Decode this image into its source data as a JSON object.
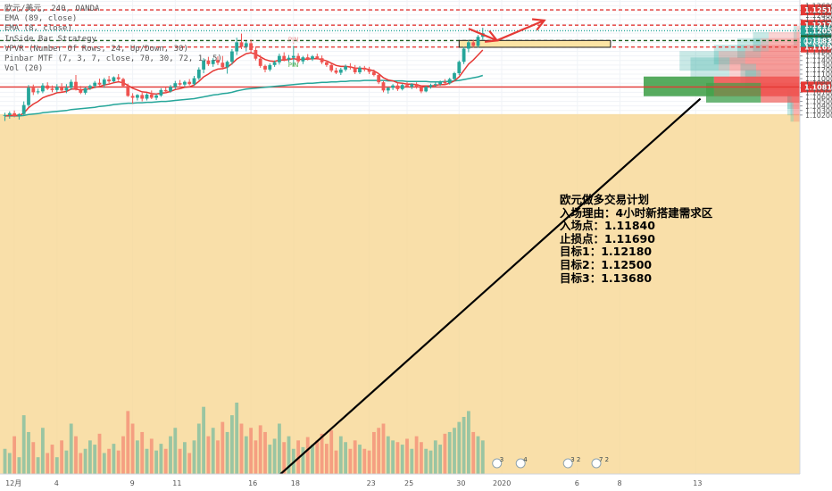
{
  "header": {
    "symbol_line": "欧元/美元, 240, OANDA",
    "indicators": [
      "EMA (89, close)",
      "EMA (8, close)",
      "InSide Bar Strategy",
      "VPVR (Number Of Rows, 24, Up/Down, 30)",
      "Pinbar MTF (7, 3, 7, close, 70, 30, 72, 1, 5)",
      "Vol (20)"
    ]
  },
  "plan": {
    "lines": [
      "欧元做多交易计划",
      "入场理由：4小时新搭建需求区",
      "入场点：1.11840",
      "止损点：1.11690",
      "目标1：1.12180",
      "目标2：1.12500",
      "目标3：1.13680"
    ]
  },
  "annotations": {
    "pin_top": "PIN",
    "pin_bottom": "PIN",
    "countdown": "02:31:26"
  },
  "colors": {
    "bull": "#26a69a",
    "bear": "#ef5350",
    "ema_fast": "#e53935",
    "ema_slow": "#26a69a",
    "level_red": "#e53935",
    "level_green": "#1b5e20",
    "zone_fill": "#fce4a4",
    "zone_border": "#1a1a1a",
    "trend": "#000000",
    "arrow": "#e53935",
    "price_badge": "#26a69a",
    "volume_band": "#f7d794"
  },
  "chart_data": {
    "type": "candlestick",
    "symbol": "欧元/美元",
    "timeframe": "240",
    "exchange": "OANDA",
    "ylim": [
      1.0193,
      1.1273
    ],
    "y_ticks": [
      1.102,
      1.103,
      1.104,
      1.105,
      1.106,
      1.107,
      1.108,
      1.109,
      1.11,
      1.111,
      1.112,
      1.113,
      1.114,
      1.115,
      1.116,
      1.117,
      1.118,
      1.119,
      1.12,
      1.121,
      1.122,
      1.123,
      1.124,
      1.125,
      1.126,
      1.127
    ],
    "y_tick_labels": [
      "1.10200",
      "1.10300",
      "1.10400",
      "1.10500",
      "1.10600",
      "1.10700",
      "1.10800",
      "1.10900",
      "1.11000",
      "1.11100",
      "1.11200",
      "1.11300",
      "1.11400",
      "1.11500",
      "1.11600",
      "1.11700",
      "1.11800",
      "1.11900",
      "1.12000",
      "1.12100",
      "1.12200",
      "1.12300",
      "1.12400",
      "1.12500",
      "1.12600",
      "1.12700"
    ],
    "x_tick_labels": [
      {
        "label": "12月",
        "bar": 2
      },
      {
        "label": "4",
        "bar": 11
      },
      {
        "label": "9",
        "bar": 27
      },
      {
        "label": "11",
        "bar": 36
      },
      {
        "label": "16",
        "bar": 52
      },
      {
        "label": "18",
        "bar": 61
      },
      {
        "label": "23",
        "bar": 77
      },
      {
        "label": "25",
        "bar": 85
      },
      {
        "label": "30",
        "bar": 96
      },
      {
        "label": "2020",
        "bar": 105
      },
      {
        "label": "6",
        "bar": 121
      },
      {
        "label": "8",
        "bar": 130
      },
      {
        "label": "13",
        "bar": 146
      }
    ],
    "levels": [
      {
        "price": 1.12512,
        "label": "1.12512",
        "color": "#e53935",
        "style": "dashed"
      },
      {
        "price": 1.12176,
        "label": "1.12176",
        "color": "#e53935",
        "style": "dashed"
      },
      {
        "price": 1.12053,
        "label": "1.12053",
        "color": "#26a69a",
        "style": "dotted"
      },
      {
        "price": 1.11838,
        "label": "1.11838",
        "color": "#1b5e20",
        "style": "dashed"
      },
      {
        "price": 1.11695,
        "label": "1.11695",
        "color": "#e53935",
        "style": "dashed"
      },
      {
        "price": 1.10817,
        "label": "1.10817",
        "color": "#e53935",
        "style": "solid"
      }
    ],
    "demand_zone": {
      "start_bar": 96,
      "end_bar": 128,
      "top": 1.1184,
      "bottom": 1.1169
    },
    "forecast_arrow": [
      {
        "bar": 98,
        "price": 1.121
      },
      {
        "bar": 104,
        "price": 1.1184
      },
      {
        "bar": 114,
        "price": 1.1228
      }
    ],
    "trendline": {
      "start": {
        "bar": 55,
        "price": 1.02
      },
      "end": {
        "bar": 147,
        "price": 1.1056
      }
    },
    "ohlc": [
      [
        1.1018,
        1.1025,
        1.1007,
        1.102
      ],
      [
        1.102,
        1.1028,
        1.1012,
        1.1024
      ],
      [
        1.1024,
        1.103,
        1.1015,
        1.1018
      ],
      [
        1.1018,
        1.1024,
        1.101,
        1.1022
      ],
      [
        1.1022,
        1.105,
        1.1018,
        1.1042
      ],
      [
        1.1042,
        1.1086,
        1.1038,
        1.108
      ],
      [
        1.108,
        1.1087,
        1.1064,
        1.107
      ],
      [
        1.107,
        1.1078,
        1.1066,
        1.1072
      ],
      [
        1.1072,
        1.109,
        1.1068,
        1.1085
      ],
      [
        1.1085,
        1.1092,
        1.1075,
        1.1078
      ],
      [
        1.1078,
        1.1085,
        1.107,
        1.1075
      ],
      [
        1.1075,
        1.1088,
        1.107,
        1.1082
      ],
      [
        1.1082,
        1.109,
        1.107,
        1.1074
      ],
      [
        1.1074,
        1.1088,
        1.1068,
        1.108
      ],
      [
        1.108,
        1.1098,
        1.1075,
        1.1093
      ],
      [
        1.1093,
        1.1108,
        1.1074,
        1.1077
      ],
      [
        1.1077,
        1.1084,
        1.1066,
        1.1069
      ],
      [
        1.1069,
        1.1081,
        1.1065,
        1.1079
      ],
      [
        1.1079,
        1.1087,
        1.1075,
        1.1084
      ],
      [
        1.1084,
        1.1095,
        1.1079,
        1.1091
      ],
      [
        1.1091,
        1.11,
        1.1085,
        1.1087
      ],
      [
        1.1087,
        1.1102,
        1.108,
        1.1098
      ],
      [
        1.1098,
        1.1106,
        1.109,
        1.1094
      ],
      [
        1.1094,
        1.1105,
        1.1092,
        1.1103
      ],
      [
        1.1103,
        1.111,
        1.1095,
        1.1099
      ],
      [
        1.1099,
        1.1102,
        1.1081,
        1.1084
      ],
      [
        1.1084,
        1.1089,
        1.106,
        1.1062
      ],
      [
        1.1062,
        1.1068,
        1.1045,
        1.1058
      ],
      [
        1.1058,
        1.1066,
        1.1052,
        1.1064
      ],
      [
        1.1064,
        1.1069,
        1.105,
        1.1056
      ],
      [
        1.1056,
        1.1068,
        1.1052,
        1.1065
      ],
      [
        1.1065,
        1.1074,
        1.1055,
        1.1058
      ],
      [
        1.1058,
        1.1066,
        1.1053,
        1.1063
      ],
      [
        1.1063,
        1.1079,
        1.106,
        1.1075
      ],
      [
        1.1075,
        1.1081,
        1.1068,
        1.1072
      ],
      [
        1.1072,
        1.1086,
        1.1069,
        1.1082
      ],
      [
        1.1082,
        1.1095,
        1.1077,
        1.109
      ],
      [
        1.109,
        1.1097,
        1.1084,
        1.1087
      ],
      [
        1.1087,
        1.1096,
        1.1082,
        1.1093
      ],
      [
        1.1093,
        1.1099,
        1.1085,
        1.1088
      ],
      [
        1.1088,
        1.1106,
        1.1084,
        1.1101
      ],
      [
        1.1101,
        1.1125,
        1.1097,
        1.112
      ],
      [
        1.112,
        1.1145,
        1.1112,
        1.114
      ],
      [
        1.114,
        1.1148,
        1.1128,
        1.1132
      ],
      [
        1.1132,
        1.1145,
        1.1126,
        1.1141
      ],
      [
        1.1141,
        1.1149,
        1.113,
        1.1135
      ],
      [
        1.1135,
        1.115,
        1.112,
        1.1125
      ],
      [
        1.1125,
        1.114,
        1.1111,
        1.1137
      ],
      [
        1.1137,
        1.1165,
        1.1131,
        1.116
      ],
      [
        1.116,
        1.119,
        1.1152,
        1.118
      ],
      [
        1.118,
        1.1199,
        1.1165,
        1.117
      ],
      [
        1.117,
        1.1183,
        1.116,
        1.1178
      ],
      [
        1.1178,
        1.1186,
        1.1158,
        1.1163
      ],
      [
        1.1163,
        1.1171,
        1.114,
        1.1144
      ],
      [
        1.1144,
        1.1152,
        1.1124,
        1.1128
      ],
      [
        1.1128,
        1.1131,
        1.1114,
        1.112
      ],
      [
        1.112,
        1.1134,
        1.1116,
        1.113
      ],
      [
        1.113,
        1.114,
        1.1126,
        1.1136
      ],
      [
        1.1136,
        1.1155,
        1.1131,
        1.115
      ],
      [
        1.115,
        1.1158,
        1.1138,
        1.1142
      ],
      [
        1.1142,
        1.1152,
        1.1136,
        1.1146
      ],
      [
        1.1146,
        1.1172,
        1.113,
        1.115
      ],
      [
        1.115,
        1.1156,
        1.1134,
        1.1138
      ],
      [
        1.1138,
        1.115,
        1.1132,
        1.1147
      ],
      [
        1.1147,
        1.1154,
        1.114,
        1.1143
      ],
      [
        1.1143,
        1.1152,
        1.1139,
        1.1149
      ],
      [
        1.1149,
        1.1155,
        1.1142,
        1.1145
      ],
      [
        1.1145,
        1.1151,
        1.1132,
        1.1136
      ],
      [
        1.1136,
        1.114,
        1.1126,
        1.113
      ],
      [
        1.113,
        1.1134,
        1.1114,
        1.1118
      ],
      [
        1.1118,
        1.1124,
        1.111,
        1.1113
      ],
      [
        1.1113,
        1.1124,
        1.1108,
        1.112
      ],
      [
        1.112,
        1.1131,
        1.1116,
        1.1127
      ],
      [
        1.1127,
        1.1134,
        1.112,
        1.1124
      ],
      [
        1.1124,
        1.113,
        1.111,
        1.1114
      ],
      [
        1.1114,
        1.1128,
        1.111,
        1.1124
      ],
      [
        1.1124,
        1.1128,
        1.1116,
        1.112
      ],
      [
        1.112,
        1.1126,
        1.111,
        1.1115
      ],
      [
        1.1115,
        1.112,
        1.1105,
        1.1108
      ],
      [
        1.1108,
        1.1112,
        1.1088,
        1.1092
      ],
      [
        1.1092,
        1.1095,
        1.107,
        1.1074
      ],
      [
        1.1074,
        1.1082,
        1.1067,
        1.108
      ],
      [
        1.108,
        1.1088,
        1.1075,
        1.1085
      ],
      [
        1.1085,
        1.1091,
        1.1073,
        1.1077
      ],
      [
        1.1077,
        1.1089,
        1.1074,
        1.1086
      ],
      [
        1.1086,
        1.1093,
        1.108,
        1.1082
      ],
      [
        1.1082,
        1.109,
        1.1077,
        1.1088
      ],
      [
        1.1088,
        1.1092,
        1.1078,
        1.1081
      ],
      [
        1.1081,
        1.1085,
        1.1068,
        1.1072
      ],
      [
        1.1072,
        1.1084,
        1.107,
        1.1082
      ],
      [
        1.1082,
        1.1089,
        1.1078,
        1.1086
      ],
      [
        1.1086,
        1.1092,
        1.1082,
        1.1088
      ],
      [
        1.1088,
        1.1096,
        1.1084,
        1.1093
      ],
      [
        1.1093,
        1.1099,
        1.1086,
        1.109
      ],
      [
        1.109,
        1.1102,
        1.1087,
        1.1099
      ],
      [
        1.1099,
        1.1115,
        1.1095,
        1.1112
      ],
      [
        1.1112,
        1.114,
        1.1108,
        1.1137
      ],
      [
        1.1137,
        1.117,
        1.1132,
        1.1166
      ],
      [
        1.1166,
        1.1185,
        1.1158,
        1.118
      ],
      [
        1.118,
        1.1186,
        1.1168,
        1.1172
      ],
      [
        1.1172,
        1.1196,
        1.1168,
        1.1192
      ],
      [
        1.1192,
        1.1212,
        1.1186,
        1.12
      ]
    ],
    "ema_fast": [
      1.1018,
      1.1019,
      1.1019,
      1.1019,
      1.1024,
      1.1036,
      1.1044,
      1.105,
      1.1058,
      1.1062,
      1.1065,
      1.1069,
      1.107,
      1.1072,
      1.1077,
      1.1077,
      1.1075,
      1.1076,
      1.1078,
      1.1081,
      1.1083,
      1.1086,
      1.1088,
      1.1091,
      1.1093,
      1.1091,
      1.1085,
      1.1079,
      1.1075,
      1.1071,
      1.107,
      1.1067,
      1.1066,
      1.1068,
      1.1069,
      1.1072,
      1.1076,
      1.1078,
      1.1081,
      1.1082,
      1.1086,
      1.1094,
      1.1104,
      1.111,
      1.1117,
      1.1121,
      1.1122,
      1.1125,
      1.1133,
      1.1143,
      1.1149,
      1.1155,
      1.1157,
      1.1154,
      1.1148,
      1.1142,
      1.1139,
      1.1138,
      1.1141,
      1.1141,
      1.1142,
      1.1144,
      1.1142,
      1.1143,
      1.1143,
      1.1144,
      1.1144,
      1.1142,
      1.1139,
      1.1134,
      1.1129,
      1.1127,
      1.1127,
      1.1126,
      1.1123,
      1.1123,
      1.1122,
      1.112,
      1.1117,
      1.1111,
      1.1102,
      1.1097,
      1.1095,
      1.1091,
      1.109,
      1.1088,
      1.1088,
      1.1087,
      1.1084,
      1.1084,
      1.1084,
      1.1085,
      1.1087,
      1.1087,
      1.109,
      1.1095,
      1.1104,
      1.1118,
      1.1132,
      1.1141,
      1.1152,
      1.1163
    ],
    "ema_slow": [
      1.1018,
      1.1018,
      1.1018,
      1.1018,
      1.1019,
      1.1021,
      1.1022,
      1.1023,
      1.1025,
      1.1026,
      1.1027,
      1.1028,
      1.1029,
      1.103,
      1.1032,
      1.1033,
      1.1034,
      1.1035,
      1.1036,
      1.1037,
      1.1039,
      1.104,
      1.1041,
      1.1043,
      1.1044,
      1.1045,
      1.1046,
      1.1046,
      1.1047,
      1.1047,
      1.1048,
      1.1048,
      1.1049,
      1.105,
      1.105,
      1.1051,
      1.1052,
      1.1053,
      1.1054,
      1.1055,
      1.1056,
      1.1058,
      1.106,
      1.1062,
      1.1064,
      1.1065,
      1.1067,
      1.1068,
      1.107,
      1.1073,
      1.1075,
      1.1077,
      1.1078,
      1.1079,
      1.108,
      1.1081,
      1.1082,
      1.1083,
      1.1084,
      1.1085,
      1.1086,
      1.1087,
      1.1088,
      1.1089,
      1.109,
      1.109,
      1.1091,
      1.1092,
      1.1092,
      1.1093,
      1.1093,
      1.1094,
      1.1094,
      1.1095,
      1.1095,
      1.1095,
      1.1096,
      1.1096,
      1.1096,
      1.1096,
      1.1096,
      1.1095,
      1.1095,
      1.1095,
      1.1095,
      1.1094,
      1.1094,
      1.1094,
      1.1094,
      1.1094,
      1.1093,
      1.1093,
      1.1093,
      1.1094,
      1.1094,
      1.1095,
      1.1096,
      1.1098,
      1.11,
      1.1102,
      1.1104,
      1.1107
    ],
    "volume": [
      30,
      25,
      45,
      20,
      70,
      50,
      38,
      20,
      55,
      25,
      35,
      20,
      40,
      28,
      60,
      45,
      25,
      30,
      40,
      35,
      48,
      25,
      30,
      36,
      28,
      45,
      75,
      60,
      40,
      50,
      30,
      42,
      28,
      36,
      30,
      45,
      55,
      30,
      38,
      25,
      40,
      60,
      80,
      45,
      55,
      40,
      62,
      50,
      70,
      85,
      60,
      45,
      55,
      40,
      58,
      50,
      35,
      42,
      60,
      38,
      45,
      30,
      40,
      32,
      44,
      35,
      40,
      48,
      36,
      52,
      28,
      45,
      38,
      30,
      40,
      35,
      30,
      28,
      50,
      55,
      60,
      45,
      40,
      38,
      35,
      42,
      30,
      45,
      38,
      30,
      28,
      40,
      35,
      48,
      50,
      55,
      62,
      68,
      75,
      50,
      45,
      40
    ],
    "volume_profile": [
      {
        "price": 1.1195,
        "up": 0.02,
        "down": 0.02
      },
      {
        "price": 1.1181,
        "up": 0.1,
        "down": 0.2
      },
      {
        "price": 1.1167,
        "up": 0.15,
        "down": 0.25
      },
      {
        "price": 1.1153,
        "up": 0.2,
        "down": 0.35
      },
      {
        "price": 1.1139,
        "up": 0.25,
        "down": 0.52
      },
      {
        "price": 1.1125,
        "up": 0.25,
        "down": 0.45
      },
      {
        "price": 1.1111,
        "up": 0.1,
        "down": 0.28
      },
      {
        "price": 1.1097,
        "up": 0.1,
        "down": 0.25
      },
      {
        "price": 1.1083,
        "up": 0.45,
        "down": 0.55
      },
      {
        "price": 1.1069,
        "up": 0.35,
        "down": 0.25
      },
      {
        "price": 1.1055,
        "up": 0.02,
        "down": 0.06
      },
      {
        "price": 1.1041,
        "up": 0.03,
        "down": 0.05
      },
      {
        "price": 1.1027,
        "up": 0.02,
        "down": 0.04
      }
    ],
    "event_markers": [
      {
        "bar": 104,
        "text": "3"
      },
      {
        "bar": 109,
        "text": "4"
      },
      {
        "bar": 119,
        "text": "3 2"
      },
      {
        "bar": 125,
        "text": "7 2"
      }
    ]
  }
}
